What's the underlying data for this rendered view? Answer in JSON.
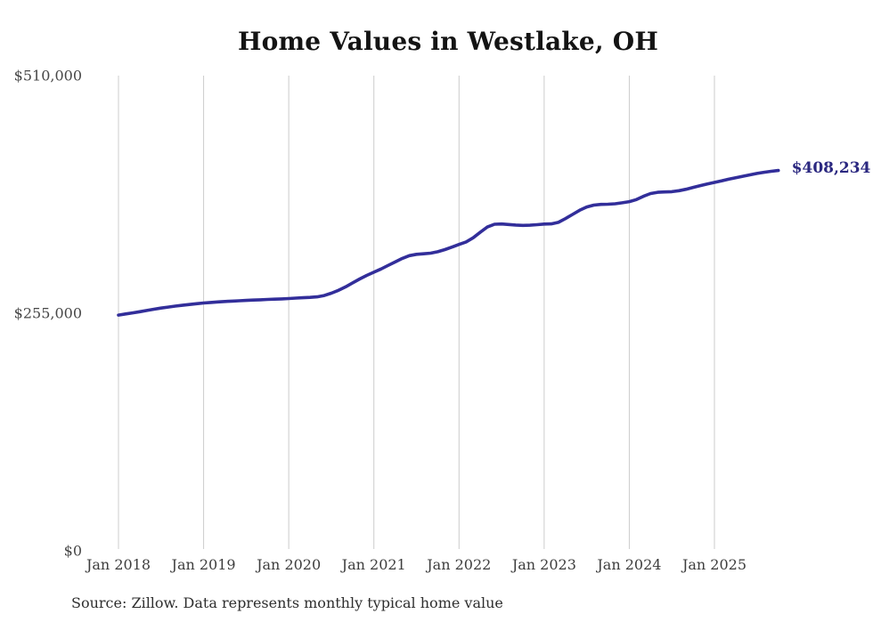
{
  "chart": {
    "title": "Home Values in Westlake, OH",
    "current_value_label": "$408,234",
    "source_note": "Source: Zillow. Data represents monthly typical home value"
  },
  "chart_data": {
    "type": "line",
    "title": "Home Values in Westlake, OH",
    "series_name": "Monthly typical home value",
    "units": "USD",
    "grid": "vertical-only",
    "legend": "none",
    "line_color": "#322e9a",
    "end_label_color": "#2b2880",
    "grid_color": "#cccccc",
    "end_label": "$408,234",
    "final_value": 408234,
    "ylim": [
      0,
      510000
    ],
    "y_ticks": [
      {
        "label": "$510,000",
        "value": 510000
      },
      {
        "label": "$255,000",
        "value": 255000
      },
      {
        "label": "$0",
        "value": 0
      }
    ],
    "x_ticks": [
      {
        "label": "Jan 2018",
        "month_index": 0
      },
      {
        "label": "Jan 2019",
        "month_index": 12
      },
      {
        "label": "Jan 2020",
        "month_index": 24
      },
      {
        "label": "Jan 2021",
        "month_index": 36
      },
      {
        "label": "Jan 2022",
        "month_index": 48
      },
      {
        "label": "Jan 2023",
        "month_index": 60
      },
      {
        "label": "Jan 2024",
        "month_index": 72
      },
      {
        "label": "Jan 2025",
        "month_index": 84
      }
    ],
    "x": [
      "2018-01",
      "2018-02",
      "2018-03",
      "2018-04",
      "2018-05",
      "2018-06",
      "2018-07",
      "2018-08",
      "2018-09",
      "2018-10",
      "2018-11",
      "2018-12",
      "2019-01",
      "2019-02",
      "2019-03",
      "2019-04",
      "2019-05",
      "2019-06",
      "2019-07",
      "2019-08",
      "2019-09",
      "2019-10",
      "2019-11",
      "2019-12",
      "2020-01",
      "2020-02",
      "2020-03",
      "2020-04",
      "2020-05",
      "2020-06",
      "2020-07",
      "2020-08",
      "2020-09",
      "2020-10",
      "2020-11",
      "2020-12",
      "2021-01",
      "2021-02",
      "2021-03",
      "2021-04",
      "2021-05",
      "2021-06",
      "2021-07",
      "2021-08",
      "2021-09",
      "2021-10",
      "2021-11",
      "2021-12",
      "2022-01",
      "2022-02",
      "2022-03",
      "2022-04",
      "2022-05",
      "2022-06",
      "2022-07",
      "2022-08",
      "2022-09",
      "2022-10",
      "2022-11",
      "2022-12",
      "2023-01",
      "2023-02",
      "2023-03",
      "2023-04",
      "2023-05",
      "2023-06",
      "2023-07",
      "2023-08",
      "2023-09",
      "2023-10",
      "2023-11",
      "2023-12",
      "2024-01",
      "2024-02",
      "2024-03",
      "2024-04",
      "2024-05",
      "2024-06",
      "2024-07",
      "2024-08",
      "2024-09",
      "2024-10",
      "2024-11",
      "2024-12",
      "2025-01",
      "2025-02",
      "2025-03",
      "2025-04",
      "2025-05",
      "2025-06",
      "2025-07",
      "2025-08",
      "2025-09",
      "2025-10"
    ],
    "values": [
      253000,
      254200,
      255400,
      256600,
      258000,
      259300,
      260500,
      261600,
      262600,
      263500,
      264400,
      265200,
      266000,
      266600,
      267100,
      267600,
      268000,
      268400,
      268800,
      269100,
      269400,
      269800,
      270100,
      270400,
      270800,
      271200,
      271600,
      272000,
      272600,
      274000,
      276500,
      279500,
      283300,
      287600,
      291800,
      295600,
      299000,
      302500,
      306300,
      310000,
      313800,
      316800,
      318200,
      318800,
      319500,
      321000,
      323300,
      326000,
      328800,
      331500,
      336000,
      342000,
      347500,
      350500,
      350800,
      350200,
      349600,
      349300,
      349500,
      350000,
      350700,
      350900,
      352500,
      356500,
      361000,
      365500,
      369000,
      371000,
      371800,
      372000,
      372500,
      373500,
      374800,
      377000,
      380500,
      383500,
      384800,
      385200,
      385500,
      386500,
      388000,
      390000,
      392000,
      393800,
      395400,
      397000,
      398800,
      400500,
      402000,
      403500,
      405000,
      406300,
      407300,
      408234
    ]
  }
}
